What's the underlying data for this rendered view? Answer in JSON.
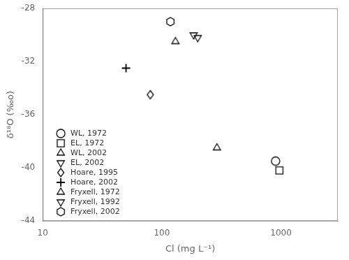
{
  "chart_data": {
    "type": "scatter",
    "xlabel": "Cl (mg L⁻¹)",
    "ylabel": "δ¹⁸O (‰o)",
    "log": "x",
    "xlim": [
      10,
      3000
    ],
    "xticks": [
      10,
      100,
      1000
    ],
    "ylim": [
      -44,
      -28
    ],
    "yticks": [
      -44,
      -40,
      -36,
      -32,
      -28
    ],
    "grid": false,
    "legend": "lower left",
    "series": [
      {
        "name": "WL, 1972",
        "marker": "circle",
        "color": "#000000",
        "x": [
          900
        ],
        "values": [
          -39.5
        ]
      },
      {
        "name": "EL, 1972",
        "marker": "square",
        "color": "#000000",
        "x": [
          970
        ],
        "values": [
          -40.2
        ]
      },
      {
        "name": "WL, 2002",
        "marker": "triangle-up",
        "color": "#000000",
        "x": [
          290
        ],
        "values": [
          -38.5
        ]
      },
      {
        "name": "EL, 2002",
        "marker": "triangle-down",
        "color": "#000000",
        "x": [
          200
        ],
        "values": [
          -30.2
        ]
      },
      {
        "name": "Hoare, 1995",
        "marker": "diamond",
        "color": "#000000",
        "x": [
          80
        ],
        "values": [
          -34.5
        ]
      },
      {
        "name": "Hoare, 2002",
        "marker": "plus",
        "color": "#000000",
        "x": [
          50
        ],
        "values": [
          -32.5
        ]
      },
      {
        "name": "Fryxell, 1972",
        "marker": "triangle-up",
        "color": "#000000",
        "x": [
          130
        ],
        "values": [
          -30.5
        ]
      },
      {
        "name": "Fryxell, 1992",
        "marker": "triangle-down",
        "color": "#000000",
        "x": [
          185
        ],
        "values": [
          -30.0
        ]
      },
      {
        "name": "Fryxell, 2002",
        "marker": "hexagon",
        "color": "#000000",
        "x": [
          118
        ],
        "values": [
          -29.0
        ]
      }
    ]
  }
}
